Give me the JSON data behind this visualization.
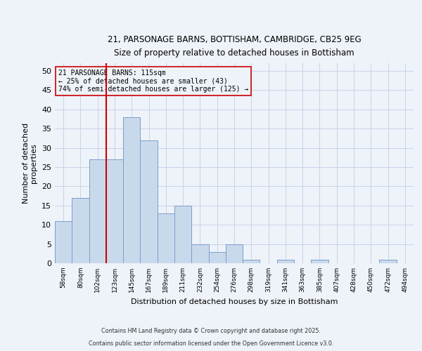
{
  "title_line1": "21, PARSONAGE BARNS, BOTTISHAM, CAMBRIDGE, CB25 9EG",
  "title_line2": "Size of property relative to detached houses in Bottisham",
  "categories": [
    "58sqm",
    "80sqm",
    "102sqm",
    "123sqm",
    "145sqm",
    "167sqm",
    "189sqm",
    "211sqm",
    "232sqm",
    "254sqm",
    "276sqm",
    "298sqm",
    "319sqm",
    "341sqm",
    "363sqm",
    "385sqm",
    "407sqm",
    "428sqm",
    "450sqm",
    "472sqm",
    "494sqm"
  ],
  "values": [
    11,
    17,
    27,
    27,
    38,
    32,
    13,
    15,
    5,
    3,
    5,
    1,
    0,
    1,
    0,
    1,
    0,
    0,
    0,
    1,
    0
  ],
  "bar_color": "#c9d9ec",
  "bar_edge_color": "#7a9ec8",
  "xlabel": "Distribution of detached houses by size in Bottisham",
  "ylabel": "Number of detached\nproperties",
  "ylim": [
    0,
    52
  ],
  "yticks": [
    0,
    5,
    10,
    15,
    20,
    25,
    30,
    35,
    40,
    45,
    50
  ],
  "vline_x": 2.5,
  "vline_color": "#cc0000",
  "annotation_text": "21 PARSONAGE BARNS: 115sqm\n← 25% of detached houses are smaller (43)\n74% of semi-detached houses are larger (125) →",
  "annotation_box_color": "#cc0000",
  "footer_line1": "Contains HM Land Registry data © Crown copyright and database right 2025.",
  "footer_line2": "Contains public sector information licensed under the Open Government Licence v3.0.",
  "bg_color": "#eef2f9",
  "grid_color": "#c8d4e8"
}
